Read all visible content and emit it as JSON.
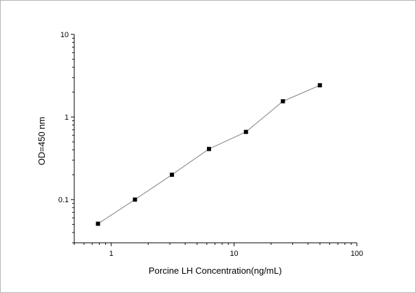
{
  "chart_data": {
    "type": "line",
    "title": "",
    "xlabel": "Porcine LH Concentration(ng/mL)",
    "ylabel": "OD=450 nm",
    "x_scale": "log",
    "y_scale": "log",
    "xlim": [
      0.5,
      100
    ],
    "ylim": [
      0.03,
      10
    ],
    "x_ticks": [
      1,
      10,
      100
    ],
    "x_tick_labels": [
      "1",
      "10",
      "100"
    ],
    "y_ticks": [
      0.1,
      1,
      10
    ],
    "y_tick_labels": [
      "0.1",
      "1",
      "10"
    ],
    "grid": false,
    "series": [
      {
        "x": [
          0.78,
          1.56,
          3.12,
          6.25,
          12.5,
          25,
          50
        ],
        "y": [
          0.051,
          0.1,
          0.2,
          0.41,
          0.66,
          1.55,
          2.42
        ]
      }
    ],
    "marker": "square",
    "line_color": "#808080",
    "marker_color": "#000000"
  }
}
